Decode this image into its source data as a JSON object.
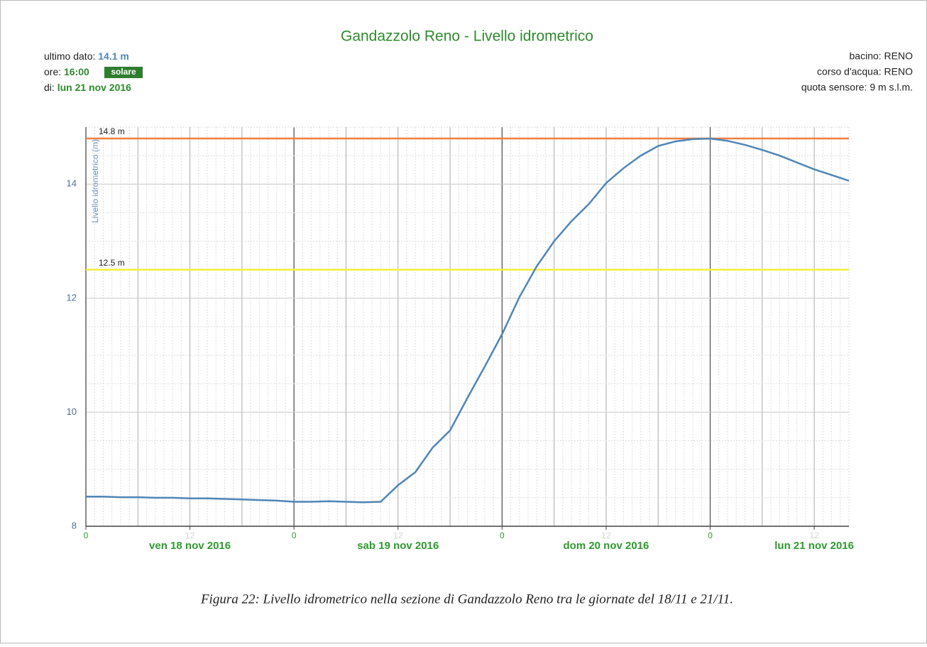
{
  "chart_data": {
    "type": "line",
    "title": "Gandazzolo Reno - Livello idrometrico",
    "y_label": "Livello idrometrico (m)",
    "info_left": [
      {
        "label": "ultimo dato:",
        "value": "14.1 m"
      },
      {
        "label": "ore:",
        "value": "16:00",
        "badge": "solare"
      },
      {
        "label": "di:",
        "value": "lun 21 nov 2016"
      }
    ],
    "info_right": [
      "bacino: RENO",
      "corso d'acqua: RENO",
      "quota sensore: 9 m s.l.m."
    ],
    "x": [
      0,
      2,
      4,
      6,
      8,
      10,
      12,
      14,
      16,
      18,
      20,
      22,
      24,
      26,
      28,
      30,
      32,
      34,
      36,
      38,
      40,
      42,
      44,
      46,
      48,
      50,
      52,
      54,
      56,
      58,
      60,
      62,
      64,
      66,
      68,
      70,
      72,
      74,
      76,
      78,
      80,
      82,
      84,
      86,
      88
    ],
    "values": [
      8.52,
      8.52,
      8.51,
      8.51,
      8.5,
      8.5,
      8.49,
      8.49,
      8.48,
      8.47,
      8.46,
      8.45,
      8.43,
      8.43,
      8.44,
      8.43,
      8.42,
      8.43,
      8.72,
      8.95,
      9.38,
      9.68,
      10.25,
      10.8,
      11.37,
      12.02,
      12.56,
      13.0,
      13.35,
      13.65,
      14.02,
      14.28,
      14.5,
      14.67,
      14.75,
      14.79,
      14.8,
      14.76,
      14.69,
      14.6,
      14.5,
      14.38,
      14.26,
      14.16,
      14.06
    ],
    "color": "#4f86b8",
    "xlim": [
      0,
      88
    ],
    "xticks": [
      0,
      12,
      {
        "value": 24,
        "label": "0"
      },
      {
        "value": 36,
        "label": "12"
      },
      {
        "value": 48,
        "label": "0"
      },
      {
        "value": 60,
        "label": "12"
      },
      {
        "value": 72,
        "label": "0"
      },
      {
        "value": 84,
        "label": "12"
      }
    ],
    "day_labels": [
      {
        "x": 12,
        "label": "ven 18 nov 2016"
      },
      {
        "x": 36,
        "label": "sab 19 nov 2016"
      },
      {
        "x": 60,
        "label": "dom 20 nov 2016"
      },
      {
        "x": 84,
        "label": "lun 21 nov 2016"
      }
    ],
    "ylim": [
      8,
      15
    ],
    "yticks": [
      8,
      10,
      12,
      14
    ],
    "thresholds": [
      {
        "value": 14.8,
        "label": "14.8 m",
        "color": "#f07f3c"
      },
      {
        "value": 12.5,
        "label": "12.5 m",
        "color": "#f2ee3a"
      }
    ],
    "grid": true,
    "caption": "Figura 22: Livello idrometrico nella sezione di Gandazzolo Reno tra le giornate del 18/11 e 21/11."
  }
}
